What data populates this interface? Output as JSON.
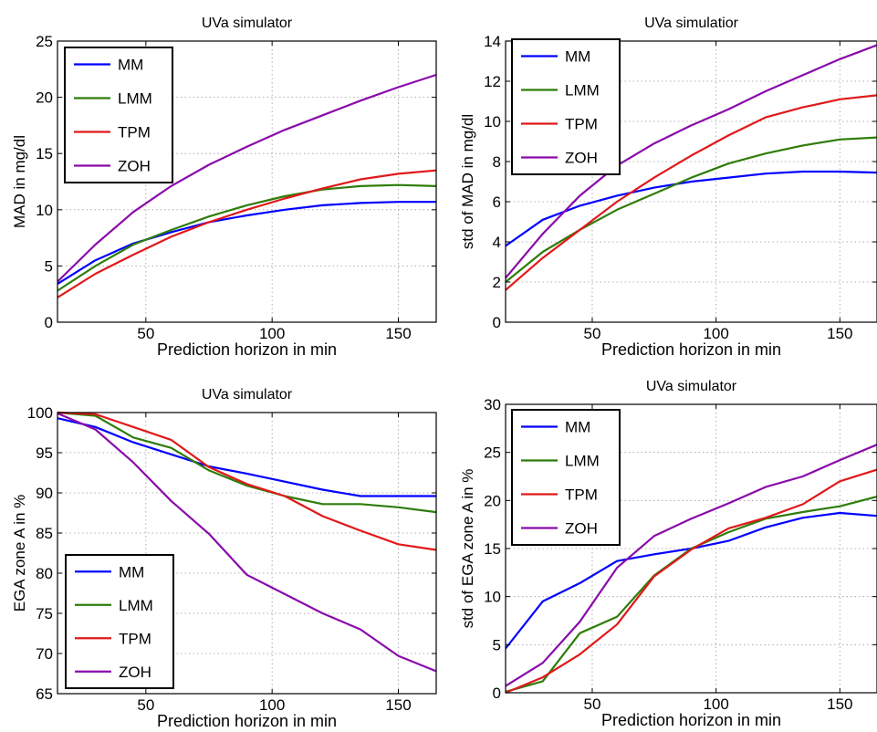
{
  "chart_data": [
    {
      "type": "line",
      "title": "UVa simulator",
      "xlabel": "Prediction horizon in min",
      "ylabel": "MAD in mg/dl",
      "xlim": [
        15,
        165
      ],
      "ylim": [
        0,
        25
      ],
      "xticks": [
        50,
        100,
        150
      ],
      "yticks": [
        0,
        5,
        10,
        15,
        20,
        25
      ],
      "grid": true,
      "legend_position": "top-left",
      "x": [
        15,
        30,
        45,
        60,
        75,
        90,
        105,
        120,
        135,
        150,
        165
      ],
      "series": [
        {
          "name": "MM",
          "color": "#0000ff",
          "values": [
            3.4,
            5.5,
            7.0,
            8.0,
            8.9,
            9.5,
            10.0,
            10.4,
            10.6,
            10.7,
            10.7
          ]
        },
        {
          "name": "LMM",
          "color": "#2e7d0a",
          "values": [
            2.8,
            5.0,
            6.9,
            8.2,
            9.4,
            10.4,
            11.2,
            11.8,
            12.1,
            12.2,
            12.1
          ]
        },
        {
          "name": "TPM",
          "color": "#e0191b",
          "values": [
            2.2,
            4.3,
            6.0,
            7.6,
            8.9,
            10.0,
            11.0,
            11.9,
            12.7,
            13.2,
            13.5
          ]
        },
        {
          "name": "ZOH",
          "color": "#8a0aaa",
          "values": [
            3.6,
            6.9,
            9.8,
            12.1,
            14.0,
            15.6,
            17.1,
            18.4,
            19.7,
            20.9,
            22.0
          ]
        }
      ]
    },
    {
      "type": "line",
      "title": "UVa simulatior",
      "xlabel": "Prediction horizon in min",
      "ylabel": "std of MAD in mg/dl",
      "xlim": [
        15,
        165
      ],
      "ylim": [
        0,
        14
      ],
      "xticks": [
        50,
        100,
        150
      ],
      "yticks": [
        0,
        2,
        4,
        6,
        8,
        10,
        12,
        14
      ],
      "grid": true,
      "legend_position": "top-left",
      "x": [
        15,
        30,
        45,
        60,
        75,
        90,
        105,
        120,
        135,
        150,
        165
      ],
      "series": [
        {
          "name": "MM",
          "color": "#0000ff",
          "values": [
            3.8,
            5.1,
            5.8,
            6.3,
            6.7,
            7.0,
            7.2,
            7.4,
            7.5,
            7.5,
            7.45
          ]
        },
        {
          "name": "LMM",
          "color": "#2e7d0a",
          "values": [
            2.0,
            3.5,
            4.6,
            5.6,
            6.4,
            7.2,
            7.9,
            8.4,
            8.8,
            9.1,
            9.2
          ]
        },
        {
          "name": "TPM",
          "color": "#e0191b",
          "values": [
            1.6,
            3.2,
            4.6,
            6.0,
            7.2,
            8.3,
            9.3,
            10.2,
            10.7,
            11.1,
            11.3
          ]
        },
        {
          "name": "ZOH",
          "color": "#8a0aaa",
          "values": [
            2.2,
            4.4,
            6.3,
            7.8,
            8.9,
            9.8,
            10.6,
            11.5,
            12.3,
            13.1,
            13.8
          ]
        }
      ]
    },
    {
      "type": "line",
      "title": "UVa simulator",
      "xlabel": "Prediction horizon in min",
      "ylabel": "EGA zone A in %",
      "xlim": [
        15,
        165
      ],
      "ylim": [
        65,
        100
      ],
      "xticks": [
        50,
        100,
        150
      ],
      "yticks": [
        65,
        70,
        75,
        80,
        85,
        90,
        95,
        100
      ],
      "grid": true,
      "legend_position": "bottom-left",
      "x": [
        15,
        30,
        45,
        60,
        75,
        90,
        105,
        120,
        135,
        150,
        165
      ],
      "series": [
        {
          "name": "MM",
          "color": "#0000ff",
          "values": [
            99.3,
            98.2,
            96.3,
            94.8,
            93.3,
            92.4,
            91.4,
            90.4,
            89.6,
            89.6,
            89.6
          ]
        },
        {
          "name": "LMM",
          "color": "#2e7d0a",
          "values": [
            100.0,
            99.6,
            96.9,
            95.6,
            92.8,
            90.9,
            89.6,
            88.6,
            88.6,
            88.2,
            87.6
          ]
        },
        {
          "name": "TPM",
          "color": "#e0191b",
          "values": [
            100.0,
            99.8,
            98.2,
            96.6,
            93.2,
            91.1,
            89.6,
            87.1,
            85.3,
            83.6,
            82.9
          ]
        },
        {
          "name": "ZOH",
          "color": "#8a0aaa",
          "values": [
            99.9,
            97.9,
            93.8,
            89.0,
            84.9,
            79.8,
            77.4,
            75.0,
            73.0,
            69.7,
            67.8
          ]
        }
      ]
    },
    {
      "type": "line",
      "title": "UVa simulator",
      "xlabel": "Prediction horizon in min",
      "ylabel": "std of EGA zone A in %",
      "xlim": [
        15,
        165
      ],
      "ylim": [
        0,
        30
      ],
      "xticks": [
        50,
        100,
        150
      ],
      "yticks": [
        0,
        5,
        10,
        15,
        20,
        25,
        30
      ],
      "grid": true,
      "legend_position": "top-left",
      "x": [
        15,
        30,
        45,
        60,
        75,
        90,
        105,
        120,
        135,
        150,
        165
      ],
      "series": [
        {
          "name": "MM",
          "color": "#0000ff",
          "values": [
            4.6,
            9.5,
            11.4,
            13.7,
            14.4,
            15.0,
            15.8,
            17.2,
            18.2,
            18.7,
            18.4
          ]
        },
        {
          "name": "LMM",
          "color": "#2e7d0a",
          "values": [
            0.1,
            1.2,
            6.2,
            7.9,
            12.2,
            15.0,
            16.7,
            18.1,
            18.8,
            19.4,
            20.4
          ]
        },
        {
          "name": "TPM",
          "color": "#e0191b",
          "values": [
            0.0,
            1.6,
            4.0,
            7.1,
            12.1,
            14.9,
            17.1,
            18.2,
            19.6,
            22.0,
            23.2
          ]
        },
        {
          "name": "ZOH",
          "color": "#8a0aaa",
          "values": [
            0.7,
            3.1,
            7.4,
            13.0,
            16.3,
            18.1,
            19.7,
            21.4,
            22.5,
            24.2,
            25.8
          ]
        }
      ]
    }
  ]
}
